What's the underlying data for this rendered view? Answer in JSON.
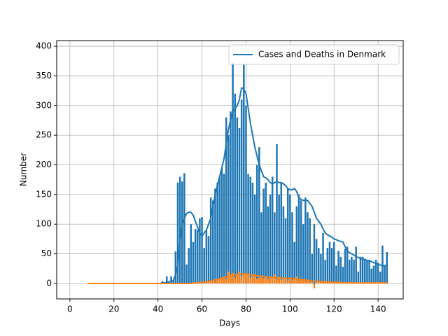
{
  "chart_data": {
    "type": "bar",
    "xlabel": "Days",
    "ylabel": "Number",
    "x": [
      8,
      9,
      10,
      11,
      12,
      13,
      14,
      15,
      16,
      17,
      18,
      19,
      20,
      21,
      22,
      23,
      24,
      25,
      26,
      27,
      28,
      29,
      30,
      31,
      32,
      33,
      34,
      35,
      36,
      37,
      38,
      39,
      40,
      41,
      42,
      43,
      44,
      45,
      46,
      47,
      48,
      49,
      50,
      51,
      52,
      53,
      54,
      55,
      56,
      57,
      58,
      59,
      60,
      61,
      62,
      63,
      64,
      65,
      66,
      67,
      68,
      69,
      70,
      71,
      72,
      73,
      74,
      75,
      76,
      77,
      78,
      79,
      80,
      81,
      82,
      83,
      84,
      85,
      86,
      87,
      88,
      89,
      90,
      91,
      92,
      93,
      94,
      95,
      96,
      97,
      98,
      99,
      100,
      101,
      102,
      103,
      104,
      105,
      106,
      107,
      108,
      109,
      110,
      111,
      112,
      113,
      114,
      115,
      116,
      117,
      118,
      119,
      120,
      121,
      122,
      123,
      124,
      125,
      126,
      127,
      128,
      129,
      130,
      131,
      132,
      133,
      134,
      135,
      136,
      137,
      138,
      139,
      140,
      141,
      142,
      143,
      144
    ],
    "series": [
      {
        "type": "bar",
        "color": "#1f77b4",
        "values": [
          0,
          0,
          0,
          0,
          0,
          0,
          0,
          0,
          0,
          0,
          0,
          0,
          0,
          0,
          0,
          0,
          0,
          0,
          0,
          0,
          0,
          0,
          0,
          0,
          0,
          0,
          0,
          0,
          0,
          0,
          0,
          0,
          0,
          0,
          4,
          1,
          12,
          3,
          12,
          5,
          54,
          170,
          180,
          172,
          186,
          32,
          60,
          100,
          70,
          92,
          90,
          110,
          112,
          60,
          90,
          80,
          145,
          140,
          160,
          170,
          180,
          195,
          185,
          280,
          250,
          290,
          372,
          320,
          280,
          262,
          310,
          370,
          300,
          185,
          180,
          170,
          150,
          200,
          230,
          120,
          160,
          170,
          130,
          150,
          180,
          120,
          235,
          150,
          170,
          130,
          110,
          160,
          150,
          120,
          70,
          130,
          150,
          140,
          100,
          145,
          120,
          110,
          50,
          100,
          75,
          60,
          50,
          85,
          40,
          60,
          70,
          60,
          70,
          30,
          55,
          45,
          28,
          58,
          62,
          40,
          45,
          40,
          62,
          20,
          45,
          45,
          42,
          40,
          40,
          25,
          30,
          40,
          35,
          20,
          64,
          30,
          53
        ]
      },
      {
        "type": "line",
        "name": "Cases and Deaths in Denmark",
        "color": "#1f77b4",
        "values": [
          0,
          0,
          0,
          0,
          0,
          0,
          0,
          0,
          0,
          0,
          0,
          0,
          0,
          0,
          0,
          0,
          0,
          0,
          0,
          0,
          0,
          0,
          0,
          0,
          0,
          0,
          0,
          0,
          0,
          0,
          0,
          0,
          0,
          0,
          1,
          1,
          2,
          3,
          4,
          5,
          15,
          30,
          70,
          100,
          110,
          118,
          120,
          120,
          115,
          105,
          95,
          85,
          80,
          85,
          90,
          100,
          110,
          130,
          150,
          165,
          180,
          195,
          210,
          235,
          260,
          275,
          290,
          295,
          300,
          310,
          330,
          328,
          320,
          295,
          270,
          250,
          230,
          215,
          200,
          190,
          180,
          178,
          175,
          170,
          168,
          170,
          172,
          170,
          170,
          168,
          165,
          160,
          158,
          158,
          160,
          155,
          145,
          142,
          140,
          140,
          140,
          135,
          130,
          120,
          110,
          105,
          100,
          92,
          85,
          82,
          80,
          78,
          75,
          74,
          72,
          71,
          70,
          62,
          55,
          52,
          50,
          48,
          45,
          44,
          42,
          41,
          40,
          39,
          38,
          37,
          35,
          34,
          32,
          31,
          30,
          30,
          30
        ]
      },
      {
        "type": "bar",
        "color": "#ff7f0e",
        "values": [
          0,
          0,
          0,
          0,
          0,
          0,
          0,
          0,
          0,
          0,
          0,
          0,
          0,
          0,
          0,
          0,
          0,
          0,
          0,
          0,
          0,
          0,
          0,
          0,
          0,
          0,
          0,
          0,
          0,
          0,
          0,
          0,
          0,
          0,
          0,
          0,
          0,
          0,
          0,
          0,
          0,
          0,
          0,
          0,
          0,
          0,
          0,
          0,
          0,
          0,
          1,
          0,
          1,
          2,
          3,
          2,
          4,
          5,
          3,
          6,
          8,
          10,
          12,
          8,
          20,
          15,
          18,
          10,
          14,
          20,
          12,
          16,
          18,
          15,
          10,
          12,
          14,
          8,
          10,
          12,
          9,
          10,
          8,
          12,
          10,
          15,
          7,
          10,
          6,
          9,
          8,
          5,
          10,
          6,
          8,
          12,
          5,
          7,
          8,
          4,
          6,
          3,
          2,
          -8,
          4,
          3,
          2,
          3,
          2,
          1,
          3,
          2,
          2,
          1,
          2,
          1,
          1,
          2,
          1,
          0,
          1,
          1,
          0,
          1,
          0,
          1,
          0,
          1,
          0,
          1,
          0,
          1,
          0,
          1,
          0,
          0,
          1
        ]
      },
      {
        "type": "line",
        "color": "#ff7f0e",
        "values": [
          0,
          0,
          0,
          0,
          0,
          0,
          0,
          0,
          0,
          0,
          0,
          0,
          0,
          0,
          0,
          0,
          0,
          0,
          0,
          0,
          0,
          0,
          0,
          0,
          0,
          0,
          0,
          0,
          0,
          0,
          0,
          0,
          0,
          0,
          0,
          0,
          0,
          0,
          0,
          0,
          0,
          0,
          0,
          0,
          0,
          0,
          0,
          0,
          1,
          1,
          1,
          1,
          2,
          2,
          3,
          3,
          4,
          5,
          6,
          7,
          8,
          9,
          10,
          11,
          12,
          13,
          14,
          14,
          15,
          15,
          16,
          16,
          16,
          15,
          15,
          14,
          14,
          13,
          13,
          12,
          12,
          11,
          11,
          11,
          10,
          10,
          10,
          10,
          9,
          9,
          9,
          8,
          8,
          8,
          8,
          7,
          7,
          7,
          6,
          6,
          5,
          5,
          4,
          4,
          4,
          3,
          3,
          3,
          3,
          2,
          2,
          2,
          2,
          2,
          2,
          2,
          1,
          1,
          1,
          1,
          1,
          1,
          1,
          1,
          1,
          1,
          1,
          1,
          1,
          1,
          1,
          1,
          1,
          1,
          1,
          1,
          1
        ]
      }
    ],
    "xlim": [
      -6,
      151.4
    ],
    "ylim": [
      -26,
      409.5
    ],
    "xticks": [
      0,
      20,
      40,
      60,
      80,
      100,
      120,
      140
    ],
    "yticks": [
      0,
      50,
      100,
      150,
      200,
      250,
      300,
      350,
      400
    ],
    "grid": true,
    "legend": "upper right"
  }
}
